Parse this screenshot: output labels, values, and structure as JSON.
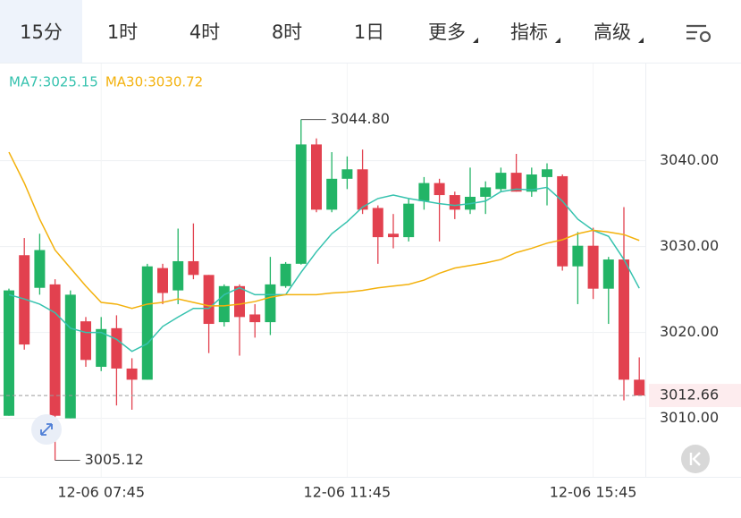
{
  "toolbar": {
    "tabs": [
      "15分",
      "1时",
      "4时",
      "8时",
      "1日",
      "更多",
      "指标",
      "高级"
    ]
  },
  "chart_data": {
    "type": "candlestick",
    "categories": [
      null,
      null,
      null,
      null,
      null,
      null,
      "12-06 07:45",
      null,
      null,
      null,
      null,
      null,
      null,
      null,
      null,
      null,
      null,
      null,
      null,
      null,
      null,
      null,
      "12-06 11:45",
      null,
      null,
      null,
      null,
      null,
      null,
      null,
      null,
      null,
      null,
      null,
      null,
      null,
      null,
      null,
      "12-06 15:45",
      null,
      null,
      null
    ],
    "open": [
      3010.3,
      3029.0,
      3025.2,
      3025.6,
      3010.0,
      3021.3,
      3016.0,
      3020.5,
      3015.8,
      3014.5,
      3027.5,
      3024.9,
      3028.3,
      3026.7,
      3021.2,
      3025.4,
      3022.1,
      3021.2,
      3025.4,
      3028.0,
      3041.9,
      3034.3,
      3037.9,
      3039.0,
      3034.5,
      3031.5,
      3031.1,
      3035.3,
      3037.4,
      3036.0,
      3034.3,
      3035.8,
      3036.7,
      3038.6,
      3036.4,
      3038.1,
      3038.2,
      3027.7,
      3030.1,
      3025.1,
      3028.5,
      3014.5
    ],
    "high": [
      3025.1,
      3031.0,
      3031.5,
      3026.2,
      3024.9,
      3021.8,
      3021.8,
      3022.0,
      3017.0,
      3028.0,
      3028.0,
      3032.1,
      3032.7,
      3026.7,
      3025.6,
      3025.6,
      3023.3,
      3028.8,
      3028.2,
      3044.8,
      3042.6,
      3041.0,
      3040.5,
      3041.3,
      3034.8,
      3033.8,
      3035.6,
      3038.1,
      3037.9,
      3036.4,
      3039.2,
      3037.6,
      3039.2,
      3040.8,
      3039.2,
      3039.7,
      3038.4,
      3031.7,
      3032.2,
      3028.8,
      3034.6,
      3017.1
    ],
    "low": [
      3010.3,
      3018.0,
      3024.4,
      3005.12,
      3010.0,
      3016.0,
      3015.5,
      3011.5,
      3011.0,
      3014.5,
      3023.3,
      3023.3,
      3026.2,
      3017.6,
      3020.7,
      3017.3,
      3019.4,
      3019.7,
      3025.2,
      3027.9,
      3034.0,
      3034.0,
      3036.7,
      3033.8,
      3028.0,
      3029.8,
      3030.6,
      3034.3,
      3030.6,
      3033.2,
      3033.8,
      3033.8,
      3036.4,
      3036.4,
      3035.8,
      3034.8,
      3027.2,
      3023.3,
      3023.9,
      3021.0,
      3012.1,
      3012.66
    ],
    "close": [
      3024.9,
      3018.6,
      3029.6,
      3010.3,
      3024.4,
      3016.8,
      3020.4,
      3015.8,
      3014.5,
      3027.7,
      3024.6,
      3028.3,
      3026.7,
      3021.0,
      3025.4,
      3021.8,
      3021.2,
      3025.6,
      3028.0,
      3041.9,
      3034.3,
      3037.9,
      3039.0,
      3034.3,
      3031.1,
      3031.1,
      3035.0,
      3037.4,
      3036.0,
      3034.3,
      3035.8,
      3036.9,
      3038.6,
      3036.4,
      3038.4,
      3039.0,
      3027.7,
      3030.1,
      3025.1,
      3028.5,
      3014.5,
      3012.66
    ],
    "up_color": "#22b466",
    "down_color": "#e2414f",
    "series": [
      {
        "name": "MA7:3025.15",
        "color": "#35c2ae",
        "values": [
          3024.4,
          3023.9,
          3023.3,
          3022.3,
          3020.5,
          3020.0,
          3020.0,
          3019.2,
          3017.8,
          3018.7,
          3020.7,
          3021.8,
          3022.8,
          3022.8,
          3024.4,
          3025.2,
          3024.4,
          3024.4,
          3024.4,
          3027.0,
          3029.4,
          3031.5,
          3032.9,
          3034.6,
          3035.6,
          3036.0,
          3035.6,
          3035.3,
          3035.0,
          3034.8,
          3035.0,
          3035.3,
          3036.4,
          3036.7,
          3036.6,
          3036.9,
          3035.3,
          3033.2,
          3031.9,
          3031.2,
          3028.5,
          3025.15
        ]
      },
      {
        "name": "MA30:3030.72",
        "color": "#f3b10c",
        "values": [
          3041.0,
          3037.4,
          3033.2,
          3029.6,
          3027.5,
          3025.4,
          3023.5,
          3023.3,
          3022.8,
          3023.3,
          3023.5,
          3023.9,
          3023.5,
          3023.1,
          3023.1,
          3023.3,
          3023.6,
          3024.1,
          3024.4,
          3024.4,
          3024.4,
          3024.6,
          3024.7,
          3024.9,
          3025.2,
          3025.4,
          3025.6,
          3026.1,
          3026.9,
          3027.5,
          3027.8,
          3028.1,
          3028.5,
          3029.3,
          3029.8,
          3030.4,
          3030.8,
          3031.5,
          3031.9,
          3031.7,
          3031.4,
          3030.72
        ]
      }
    ],
    "ylim": [
      3003.5,
      3048.3
    ],
    "yticks": [
      {
        "value": 3010,
        "label": "3010.00"
      },
      {
        "value": 3020,
        "label": "3020.00"
      },
      {
        "value": 3030,
        "label": "3030.00"
      },
      {
        "value": 3040,
        "label": "3040.00"
      }
    ],
    "grid": true,
    "annotations": [
      {
        "value": 3044.8,
        "label": "3044.80"
      },
      {
        "value": 3005.12,
        "label": "3005.12"
      }
    ],
    "current_price": {
      "value": 3012.66,
      "label": "3012.66"
    }
  }
}
